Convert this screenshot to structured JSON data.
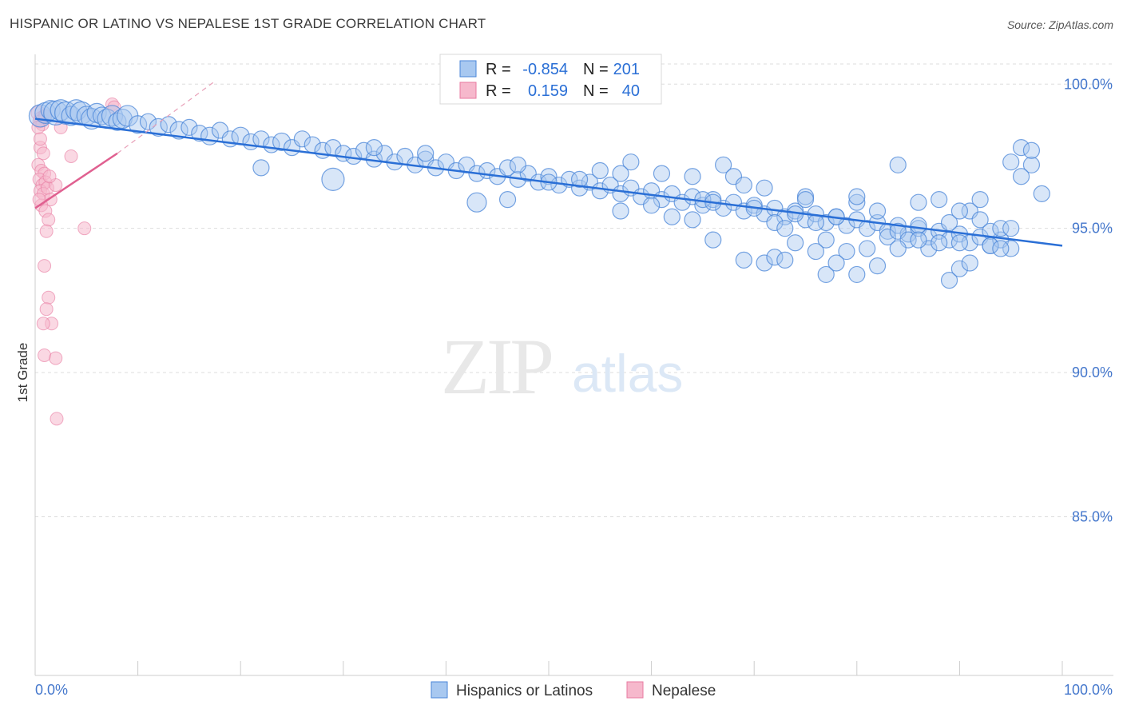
{
  "header": {
    "title": "HISPANIC OR LATINO VS NEPALESE 1ST GRADE CORRELATION CHART",
    "source": "Source: ZipAtlas.com"
  },
  "watermark": {
    "zip": "ZIP",
    "atlas": "atlas"
  },
  "colors": {
    "blue": "#4a86d8",
    "blue_fill": "#a8c8f0",
    "blue_line": "#2a6fd6",
    "pink": "#e87aa0",
    "pink_fill": "#f6b8cc",
    "pink_line": "#e06090",
    "tick_text": "#4477cc",
    "grid": "#dddddd"
  },
  "stats_legend": {
    "rows": [
      {
        "r_label": "R =",
        "r_value": "-0.854",
        "n_label": "N =",
        "n_value": "201",
        "series": "blue"
      },
      {
        "r_label": "R =",
        "r_value": "0.159",
        "n_label": "N =",
        "n_value": "40",
        "series": "pink"
      }
    ]
  },
  "chart_data": {
    "type": "scatter",
    "title": "HISPANIC OR LATINO VS NEPALESE 1ST GRADE CORRELATION CHART",
    "xlabel": "",
    "ylabel": "1st Grade",
    "xlim": [
      0,
      100
    ],
    "ylim": [
      79.5,
      100.7
    ],
    "x_tick_labels": [
      "0.0%",
      "100.0%"
    ],
    "y_ticks": [
      85,
      90,
      95,
      100
    ],
    "y_tick_labels": [
      "85.0%",
      "90.0%",
      "95.0%",
      "100.0%"
    ],
    "grid": true,
    "legend_position": "bottom",
    "series": [
      {
        "name": "Hispanics or Latinos",
        "color": "blue",
        "trend": {
          "x": [
            0,
            100
          ],
          "y": [
            98.8,
            94.4
          ]
        },
        "points": [
          [
            0.5,
            98.9,
            14
          ],
          [
            1,
            99,
            13
          ],
          [
            1.5,
            99.1,
            12
          ],
          [
            2,
            99.0,
            15
          ],
          [
            2.5,
            99.1,
            13
          ],
          [
            3,
            99.0,
            14
          ],
          [
            3.5,
            98.9,
            12
          ],
          [
            4,
            99.1,
            13
          ],
          [
            4.5,
            99.0,
            14
          ],
          [
            5,
            98.9,
            12
          ],
          [
            5.5,
            98.8,
            13
          ],
          [
            6,
            99.0,
            12
          ],
          [
            6.5,
            98.9,
            11
          ],
          [
            7,
            98.8,
            12
          ],
          [
            7.5,
            98.9,
            13
          ],
          [
            8,
            98.7,
            11
          ],
          [
            8.5,
            98.8,
            12
          ],
          [
            9,
            98.9,
            13
          ],
          [
            10,
            98.6,
            11
          ],
          [
            11,
            98.7,
            10
          ],
          [
            12,
            98.5,
            11
          ],
          [
            13,
            98.6,
            10
          ],
          [
            14,
            98.4,
            11
          ],
          [
            15,
            98.5,
            10
          ],
          [
            16,
            98.3,
            10
          ],
          [
            17,
            98.2,
            11
          ],
          [
            18,
            98.4,
            10
          ],
          [
            19,
            98.1,
            10
          ],
          [
            20,
            98.2,
            11
          ],
          [
            21,
            98.0,
            10
          ],
          [
            22,
            98.1,
            10
          ],
          [
            23,
            97.9,
            10
          ],
          [
            24,
            98.0,
            11
          ],
          [
            25,
            97.8,
            10
          ],
          [
            26,
            98.1,
            10
          ],
          [
            27,
            97.9,
            10
          ],
          [
            28,
            97.7,
            10
          ],
          [
            29,
            97.8,
            10
          ],
          [
            30,
            97.6,
            10
          ],
          [
            31,
            97.5,
            10
          ],
          [
            32,
            97.7,
            10
          ],
          [
            33,
            97.4,
            10
          ],
          [
            34,
            97.6,
            10
          ],
          [
            35,
            97.3,
            10
          ],
          [
            36,
            97.5,
            10
          ],
          [
            37,
            97.2,
            10
          ],
          [
            38,
            97.4,
            10
          ],
          [
            39,
            97.1,
            10
          ],
          [
            40,
            97.3,
            10
          ],
          [
            41,
            97.0,
            10
          ],
          [
            42,
            97.2,
            10
          ],
          [
            43,
            96.9,
            10
          ],
          [
            44,
            97.0,
            10
          ],
          [
            45,
            96.8,
            10
          ],
          [
            46,
            97.1,
            10
          ],
          [
            47,
            96.7,
            10
          ],
          [
            48,
            96.9,
            10
          ],
          [
            49,
            96.6,
            10
          ],
          [
            50,
            96.8,
            10
          ],
          [
            51,
            96.5,
            10
          ],
          [
            52,
            96.7,
            10
          ],
          [
            53,
            96.4,
            10
          ],
          [
            54,
            96.6,
            10
          ],
          [
            55,
            96.3,
            10
          ],
          [
            56,
            96.5,
            10
          ],
          [
            57,
            96.2,
            10
          ],
          [
            58,
            96.4,
            10
          ],
          [
            59,
            96.1,
            10
          ],
          [
            60,
            96.3,
            10
          ],
          [
            61,
            96.0,
            10
          ],
          [
            62,
            96.2,
            10
          ],
          [
            63,
            95.9,
            10
          ],
          [
            64,
            96.1,
            10
          ],
          [
            65,
            95.8,
            10
          ],
          [
            66,
            96.0,
            10
          ],
          [
            67,
            95.7,
            10
          ],
          [
            68,
            95.9,
            10
          ],
          [
            69,
            95.6,
            10
          ],
          [
            70,
            95.8,
            10
          ],
          [
            71,
            95.5,
            10
          ],
          [
            72,
            95.7,
            10
          ],
          [
            73,
            95.4,
            10
          ],
          [
            74,
            95.6,
            10
          ],
          [
            75,
            95.3,
            10
          ],
          [
            76,
            95.5,
            10
          ],
          [
            77,
            95.2,
            10
          ],
          [
            78,
            95.4,
            10
          ],
          [
            79,
            95.1,
            10
          ],
          [
            80,
            95.3,
            10
          ],
          [
            81,
            95.0,
            10
          ],
          [
            82,
            95.2,
            10
          ],
          [
            83,
            94.9,
            10
          ],
          [
            84,
            95.1,
            10
          ],
          [
            85,
            94.8,
            10
          ],
          [
            86,
            95.0,
            10
          ],
          [
            87,
            94.7,
            10
          ],
          [
            88,
            94.9,
            10
          ],
          [
            89,
            94.6,
            10
          ],
          [
            90,
            94.8,
            10
          ],
          [
            91,
            94.5,
            10
          ],
          [
            92,
            94.7,
            10
          ],
          [
            93,
            94.4,
            10
          ],
          [
            94,
            94.6,
            10
          ],
          [
            95,
            94.3,
            10
          ],
          [
            29,
            96.7,
            14
          ],
          [
            22,
            97.1,
            10
          ],
          [
            33,
            97.8,
            10
          ],
          [
            38,
            97.6,
            10
          ],
          [
            47,
            97.2,
            10
          ],
          [
            50,
            96.6,
            10
          ],
          [
            46,
            96.0,
            10
          ],
          [
            43,
            95.9,
            12
          ],
          [
            53,
            96.7,
            10
          ],
          [
            57,
            95.6,
            10
          ],
          [
            60,
            95.8,
            10
          ],
          [
            64,
            95.3,
            10
          ],
          [
            65,
            96.0,
            10
          ],
          [
            67,
            97.2,
            10
          ],
          [
            68,
            96.8,
            10
          ],
          [
            69,
            96.5,
            10
          ],
          [
            70,
            95.7,
            10
          ],
          [
            72,
            95.2,
            10
          ],
          [
            73,
            95.0,
            10
          ],
          [
            74,
            95.5,
            10
          ],
          [
            75,
            96.1,
            10
          ],
          [
            76,
            95.2,
            10
          ],
          [
            77,
            94.6,
            10
          ],
          [
            78,
            95.4,
            10
          ],
          [
            79,
            94.2,
            10
          ],
          [
            80,
            95.9,
            10
          ],
          [
            81,
            94.3,
            10
          ],
          [
            82,
            95.6,
            10
          ],
          [
            83,
            94.7,
            10
          ],
          [
            84,
            94.9,
            10
          ],
          [
            85,
            94.6,
            10
          ],
          [
            86,
            95.1,
            10
          ],
          [
            87,
            94.3,
            10
          ],
          [
            88,
            94.5,
            10
          ],
          [
            89,
            95.2,
            10
          ],
          [
            90,
            94.5,
            10
          ],
          [
            91,
            95.6,
            10
          ],
          [
            92,
            95.3,
            10
          ],
          [
            93,
            94.9,
            10
          ],
          [
            94,
            95.0,
            10
          ],
          [
            66,
            94.6,
            10
          ],
          [
            69,
            93.9,
            10
          ],
          [
            71,
            93.8,
            10
          ],
          [
            72,
            94.0,
            10
          ],
          [
            73,
            93.9,
            10
          ],
          [
            74,
            94.5,
            10
          ],
          [
            76,
            94.2,
            10
          ],
          [
            77,
            93.4,
            10
          ],
          [
            78,
            93.8,
            10
          ],
          [
            80,
            93.4,
            10
          ],
          [
            82,
            93.7,
            10
          ],
          [
            84,
            94.3,
            10
          ],
          [
            86,
            94.6,
            10
          ],
          [
            89,
            93.2,
            10
          ],
          [
            90,
            93.6,
            10
          ],
          [
            91,
            93.8,
            10
          ],
          [
            93,
            94.4,
            10
          ],
          [
            94,
            94.3,
            10
          ],
          [
            96,
            97.8,
            10
          ],
          [
            97,
            97.2,
            10
          ],
          [
            98,
            96.2,
            10
          ],
          [
            97,
            97.7,
            10
          ],
          [
            96,
            96.8,
            10
          ],
          [
            95,
            97.3,
            10
          ],
          [
            55,
            97.0,
            10
          ],
          [
            58,
            97.3,
            10
          ],
          [
            61,
            96.9,
            10
          ],
          [
            64,
            96.8,
            10
          ],
          [
            66,
            95.9,
            10
          ],
          [
            71,
            96.4,
            10
          ],
          [
            75,
            96.0,
            10
          ],
          [
            80,
            96.1,
            10
          ],
          [
            84,
            97.2,
            10
          ],
          [
            86,
            95.9,
            10
          ],
          [
            88,
            96.0,
            10
          ],
          [
            90,
            95.6,
            10
          ],
          [
            92,
            96.0,
            10
          ],
          [
            95,
            95.0,
            10
          ],
          [
            57,
            96.9,
            10
          ],
          [
            62,
            95.4,
            10
          ]
        ]
      },
      {
        "name": "Nepalese",
        "color": "pink",
        "trend": {
          "x": [
            0,
            8
          ],
          "y": [
            95.7,
            97.6
          ],
          "dashed_to": {
            "x": 17.5,
            "y": 100.1
          }
        },
        "points": [
          [
            0.3,
            99.0,
            9
          ],
          [
            0.6,
            98.8,
            9
          ],
          [
            0.9,
            98.9,
            8
          ],
          [
            0.4,
            98.7,
            8
          ],
          [
            0.7,
            98.6,
            8
          ],
          [
            1.0,
            98.9,
            8
          ],
          [
            7.5,
            99.3,
            8
          ],
          [
            7.7,
            99.2,
            8
          ],
          [
            2.5,
            98.5,
            8
          ],
          [
            0.5,
            97.8,
            8
          ],
          [
            0.8,
            97.6,
            8
          ],
          [
            0.3,
            97.2,
            8
          ],
          [
            0.6,
            97.0,
            8
          ],
          [
            0.9,
            96.9,
            8
          ],
          [
            0.4,
            96.7,
            8
          ],
          [
            0.7,
            96.5,
            8
          ],
          [
            1.0,
            96.6,
            8
          ],
          [
            0.5,
            96.3,
            8
          ],
          [
            0.8,
            96.2,
            8
          ],
          [
            1.2,
            96.4,
            8
          ],
          [
            1.5,
            96.0,
            8
          ],
          [
            0.6,
            95.8,
            8
          ],
          [
            1.0,
            95.6,
            8
          ],
          [
            1.3,
            95.3,
            8
          ],
          [
            3.5,
            97.5,
            8
          ],
          [
            2.0,
            96.5,
            8
          ],
          [
            4.8,
            95.0,
            8
          ],
          [
            1.1,
            94.9,
            8
          ],
          [
            0.9,
            93.7,
            8
          ],
          [
            1.3,
            92.6,
            8
          ],
          [
            1.1,
            92.2,
            8
          ],
          [
            1.6,
            91.7,
            8
          ],
          [
            0.8,
            91.7,
            8
          ],
          [
            0.9,
            90.6,
            8
          ],
          [
            2.0,
            90.5,
            8
          ],
          [
            2.1,
            88.4,
            8
          ],
          [
            0.5,
            98.1,
            8
          ],
          [
            0.3,
            98.5,
            8
          ],
          [
            1.4,
            96.8,
            8
          ],
          [
            0.4,
            96.0,
            8
          ]
        ]
      }
    ]
  },
  "bottom_legend": [
    {
      "label": "Hispanics or Latinos",
      "series": "blue"
    },
    {
      "label": "Nepalese",
      "series": "pink"
    }
  ]
}
